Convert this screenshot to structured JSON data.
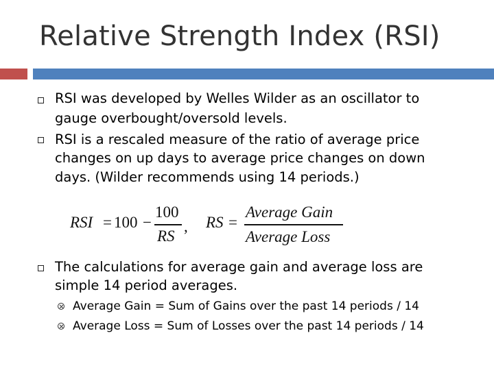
{
  "slide": {
    "title": "Relative Strength Index (RSI)",
    "colors": {
      "left_bar": "#c0504d",
      "right_bar": "#4f81bd"
    },
    "bullets": [
      {
        "lines": [
          "RSI was developed by Welles Wilder as an oscillator to",
          "gauge overbought/oversold levels."
        ]
      },
      {
        "lines": [
          "RSI is a rescaled measure of the ratio of average price",
          "changes on up days to average price changes on down",
          "days. (Wilder recommends using 14 periods.)"
        ]
      },
      {
        "lines": [
          "The calculations for average gain and average loss are",
          "simple 14 period averages."
        ]
      }
    ],
    "sub_bullets": [
      "Average Gain = Sum of Gains over the past 14 periods / 14",
      "Average Loss = Sum of Losses over the past 14 periods / 14"
    ],
    "formula": {
      "rsi_lhs": "RSI",
      "eq": "=",
      "hundred": "100",
      "minus": "−",
      "numerator": "100",
      "denominator": "RS",
      "comma": ",",
      "rs_lhs": "RS",
      "rs_numerator": "Average Gain",
      "rs_denominator": "Average Loss"
    }
  }
}
